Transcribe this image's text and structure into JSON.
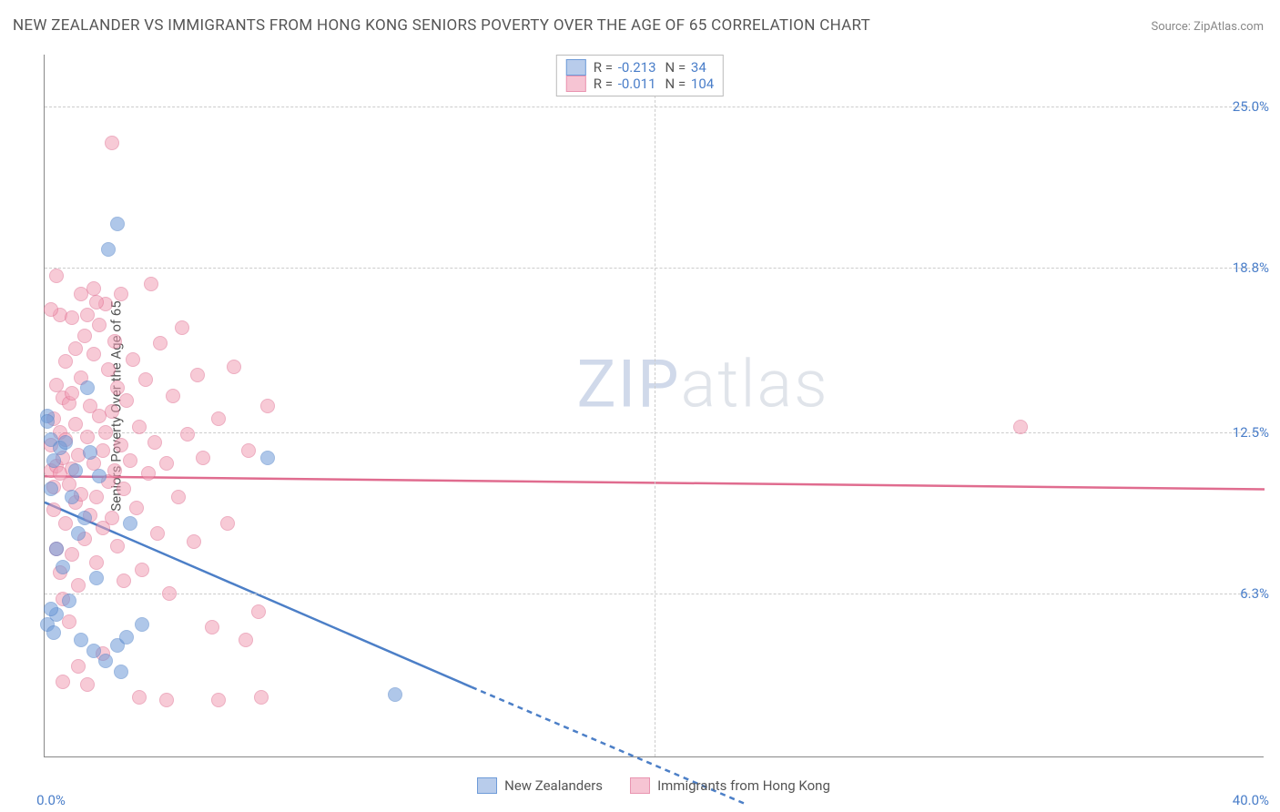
{
  "title": "NEW ZEALANDER VS IMMIGRANTS FROM HONG KONG SENIORS POVERTY OVER THE AGE OF 65 CORRELATION CHART",
  "source": "Source: ZipAtlas.com",
  "ylabel": "Seniors Poverty Over the Age of 65",
  "watermark_part1": "ZIP",
  "watermark_part2": "atlas",
  "chart": {
    "type": "scatter",
    "xlim": [
      0,
      40
    ],
    "ylim": [
      0,
      27
    ],
    "background_color": "#ffffff",
    "grid_color": "#cccccc",
    "xaxis_label_min": "0.0%",
    "xaxis_label_max": "40.0%",
    "yticks": [
      {
        "v": 6.3,
        "label": "6.3%"
      },
      {
        "v": 12.5,
        "label": "12.5%"
      },
      {
        "v": 18.8,
        "label": "18.8%"
      },
      {
        "v": 25.0,
        "label": "25.0%"
      }
    ],
    "xgrid": [
      20
    ],
    "series": [
      {
        "name": "New Zealanders",
        "color_fill": "#6e9bd8",
        "color_stroke": "#4c7fc7",
        "R": "-0.213",
        "N": "34",
        "trend": {
          "x1": 0,
          "y1": 9.8,
          "x2": 14,
          "y2": 2.7,
          "dash_x2": 23,
          "dash_y2": -1.8
        },
        "points": [
          [
            0.1,
            13.1
          ],
          [
            0.1,
            5.1
          ],
          [
            0.2,
            12.2
          ],
          [
            0.2,
            10.3
          ],
          [
            0.3,
            11.4
          ],
          [
            0.3,
            4.8
          ],
          [
            0.4,
            8.0
          ],
          [
            0.4,
            5.5
          ],
          [
            0.5,
            11.9
          ],
          [
            0.6,
            7.3
          ],
          [
            0.7,
            12.1
          ],
          [
            0.8,
            6.0
          ],
          [
            0.9,
            10.0
          ],
          [
            1.0,
            11.0
          ],
          [
            1.1,
            8.6
          ],
          [
            1.2,
            4.5
          ],
          [
            1.3,
            9.2
          ],
          [
            1.4,
            14.2
          ],
          [
            1.5,
            11.7
          ],
          [
            1.6,
            4.1
          ],
          [
            1.7,
            6.9
          ],
          [
            1.8,
            10.8
          ],
          [
            2.0,
            3.7
          ],
          [
            2.1,
            19.5
          ],
          [
            2.4,
            20.5
          ],
          [
            2.4,
            4.3
          ],
          [
            2.5,
            3.3
          ],
          [
            2.7,
            4.6
          ],
          [
            2.8,
            9.0
          ],
          [
            3.2,
            5.1
          ],
          [
            7.3,
            11.5
          ],
          [
            11.5,
            2.4
          ],
          [
            0.1,
            12.9
          ],
          [
            0.2,
            5.7
          ]
        ]
      },
      {
        "name": "Immigrants from Hong Kong",
        "color_fill": "#f19fb6",
        "color_stroke": "#e06c8f",
        "R": "-0.011",
        "N": "104",
        "trend": {
          "x1": 0,
          "y1": 10.8,
          "x2": 40,
          "y2": 10.3,
          "dash_x2": 40,
          "dash_y2": 10.3
        },
        "points": [
          [
            0.2,
            11.0
          ],
          [
            0.2,
            12.0
          ],
          [
            0.3,
            9.5
          ],
          [
            0.3,
            10.4
          ],
          [
            0.3,
            13.0
          ],
          [
            0.4,
            11.2
          ],
          [
            0.4,
            8.0
          ],
          [
            0.4,
            14.3
          ],
          [
            0.5,
            10.9
          ],
          [
            0.5,
            12.5
          ],
          [
            0.5,
            7.1
          ],
          [
            0.6,
            11.5
          ],
          [
            0.6,
            13.8
          ],
          [
            0.6,
            6.1
          ],
          [
            0.7,
            12.2
          ],
          [
            0.7,
            9.0
          ],
          [
            0.7,
            15.2
          ],
          [
            0.8,
            10.5
          ],
          [
            0.8,
            13.6
          ],
          [
            0.8,
            5.2
          ],
          [
            0.9,
            11.1
          ],
          [
            0.9,
            14.0
          ],
          [
            0.9,
            7.8
          ],
          [
            1.0,
            12.8
          ],
          [
            1.0,
            9.8
          ],
          [
            1.0,
            15.7
          ],
          [
            1.1,
            11.6
          ],
          [
            1.1,
            6.6
          ],
          [
            1.2,
            14.6
          ],
          [
            1.2,
            10.1
          ],
          [
            1.3,
            16.2
          ],
          [
            1.3,
            8.4
          ],
          [
            1.4,
            12.3
          ],
          [
            1.4,
            17.0
          ],
          [
            1.5,
            9.3
          ],
          [
            1.5,
            13.5
          ],
          [
            1.6,
            11.3
          ],
          [
            1.6,
            15.5
          ],
          [
            1.7,
            10.0
          ],
          [
            1.7,
            7.5
          ],
          [
            1.8,
            13.1
          ],
          [
            1.8,
            16.6
          ],
          [
            1.9,
            11.8
          ],
          [
            1.9,
            8.8
          ],
          [
            2.0,
            12.5
          ],
          [
            2.0,
            17.4
          ],
          [
            2.1,
            10.6
          ],
          [
            2.1,
            14.9
          ],
          [
            2.2,
            13.3
          ],
          [
            2.2,
            9.2
          ],
          [
            2.3,
            16.0
          ],
          [
            2.3,
            11.0
          ],
          [
            2.4,
            8.1
          ],
          [
            2.4,
            14.2
          ],
          [
            2.5,
            12.0
          ],
          [
            2.5,
            17.8
          ],
          [
            2.6,
            10.3
          ],
          [
            2.6,
            6.8
          ],
          [
            2.7,
            13.7
          ],
          [
            2.8,
            11.4
          ],
          [
            2.9,
            15.3
          ],
          [
            3.0,
            9.6
          ],
          [
            3.1,
            12.7
          ],
          [
            3.2,
            7.2
          ],
          [
            3.3,
            14.5
          ],
          [
            3.4,
            10.9
          ],
          [
            3.5,
            18.2
          ],
          [
            3.6,
            12.1
          ],
          [
            3.7,
            8.6
          ],
          [
            3.8,
            15.9
          ],
          [
            4.0,
            11.3
          ],
          [
            4.1,
            6.3
          ],
          [
            4.2,
            13.9
          ],
          [
            4.4,
            10.0
          ],
          [
            4.5,
            16.5
          ],
          [
            4.7,
            12.4
          ],
          [
            4.9,
            8.3
          ],
          [
            5.0,
            14.7
          ],
          [
            5.2,
            11.5
          ],
          [
            5.5,
            5.0
          ],
          [
            5.7,
            13.0
          ],
          [
            6.0,
            9.0
          ],
          [
            6.2,
            15.0
          ],
          [
            6.6,
            4.5
          ],
          [
            6.7,
            11.8
          ],
          [
            7.0,
            5.6
          ],
          [
            7.1,
            2.3
          ],
          [
            7.3,
            13.5
          ],
          [
            2.2,
            23.6
          ],
          [
            1.6,
            18.0
          ],
          [
            0.5,
            17.0
          ],
          [
            1.2,
            17.8
          ],
          [
            1.9,
            4.0
          ],
          [
            3.1,
            2.3
          ],
          [
            4.0,
            2.2
          ],
          [
            5.7,
            2.2
          ],
          [
            1.4,
            2.8
          ],
          [
            1.1,
            3.5
          ],
          [
            0.6,
            2.9
          ],
          [
            0.4,
            18.5
          ],
          [
            0.9,
            16.9
          ],
          [
            0.2,
            17.2
          ],
          [
            1.7,
            17.5
          ],
          [
            32.0,
            12.7
          ]
        ]
      }
    ]
  },
  "legend_bottom": [
    {
      "swatch_fill": "#b8cceb",
      "swatch_stroke": "#6e9bd8",
      "label": "New Zealanders"
    },
    {
      "swatch_fill": "#f6c4d3",
      "swatch_stroke": "#e995b1",
      "label": "Immigrants from Hong Kong"
    }
  ]
}
